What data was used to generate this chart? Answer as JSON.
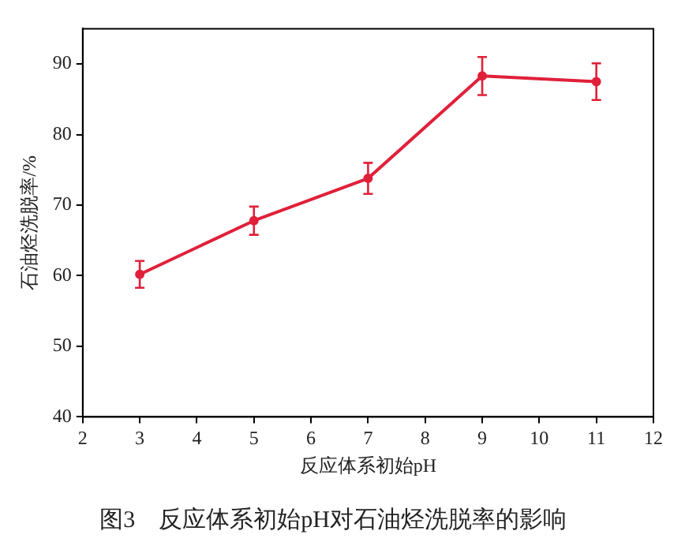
{
  "chart_data": {
    "type": "line",
    "title": "图3　反应体系初始pH对石油烃洗脱率的影响",
    "xlabel": "反应体系初始pH",
    "ylabel": "石油烃洗脱率/%",
    "x": [
      3,
      5,
      7,
      9,
      11
    ],
    "series": [
      {
        "color": "#e0203a",
        "values": [
          60.2,
          67.8,
          73.8,
          88.3,
          87.5
        ],
        "errors": [
          1.9,
          2.0,
          2.2,
          2.7,
          2.6
        ]
      }
    ],
    "xlim": [
      2,
      12
    ],
    "xticks": [
      2,
      3,
      4,
      5,
      6,
      7,
      8,
      9,
      10,
      11,
      12
    ],
    "ylim": [
      40,
      95
    ],
    "yticks": [
      40,
      50,
      60,
      70,
      80,
      90
    ],
    "grid": false,
    "legend": false,
    "marker": "circle",
    "line_style": "solid"
  }
}
